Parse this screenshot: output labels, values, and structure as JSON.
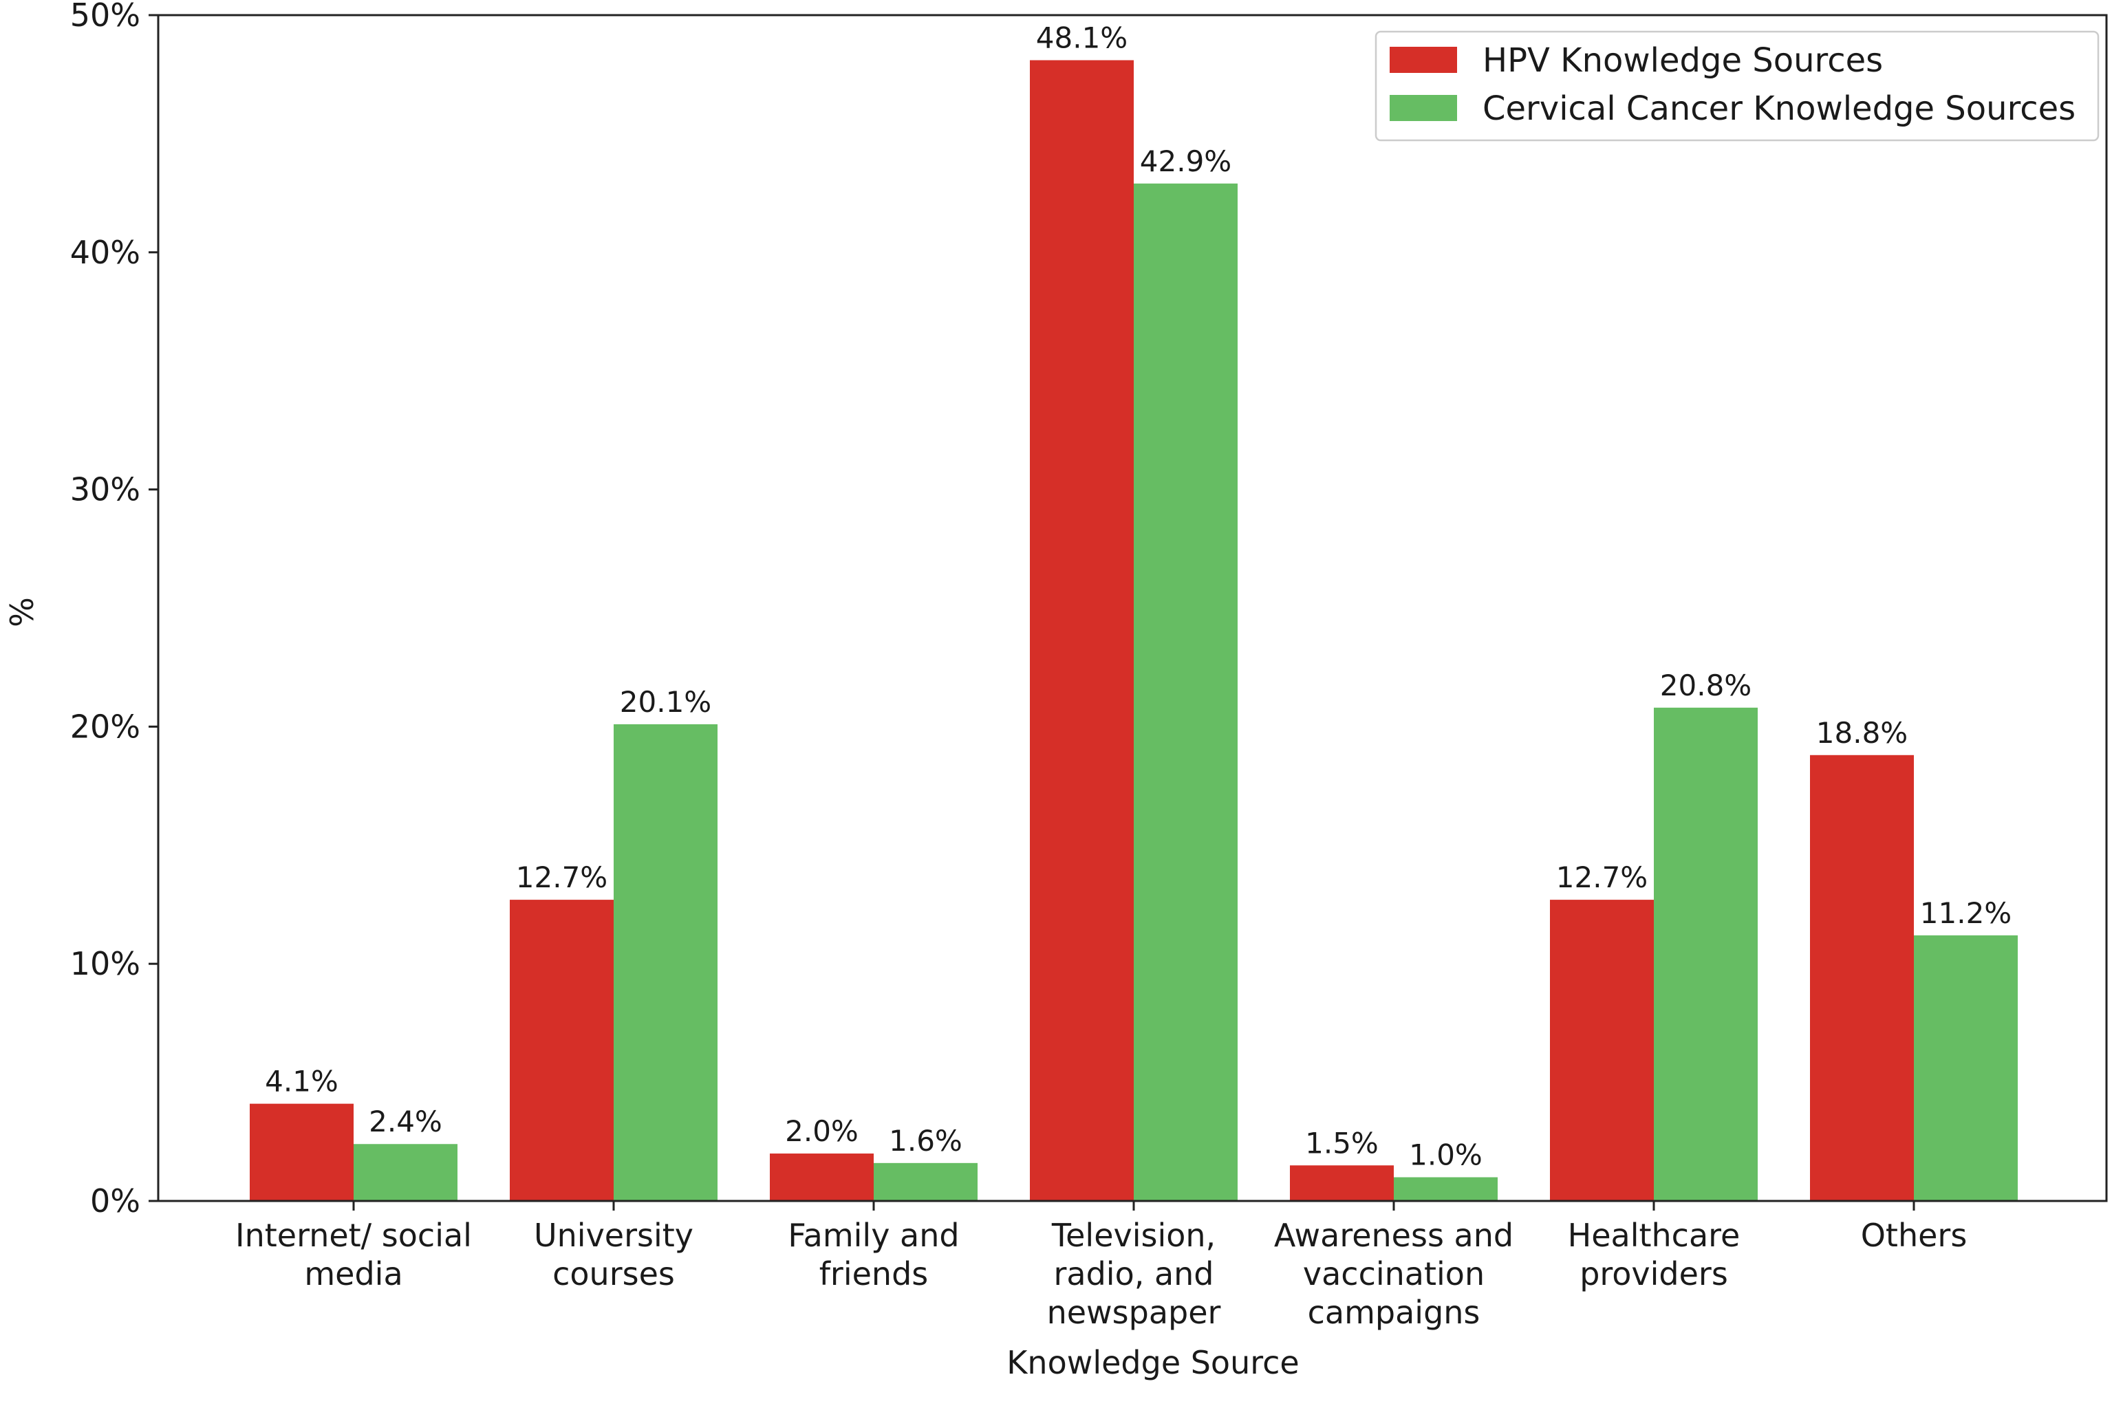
{
  "chart_data": {
    "type": "bar",
    "title": "",
    "xlabel": "Knowledge Source",
    "ylabel": "%",
    "ylim": [
      0,
      50
    ],
    "yticks": [
      0,
      10,
      20,
      30,
      40,
      50
    ],
    "ytick_labels": [
      "0%",
      "10%",
      "20%",
      "30%",
      "40%",
      "50%"
    ],
    "legend_position": "top-right",
    "grid": false,
    "categories": [
      [
        "Internet/ social",
        "media"
      ],
      [
        "University",
        "courses"
      ],
      [
        "Family and",
        "friends"
      ],
      [
        "Television,",
        "radio, and",
        "newspaper"
      ],
      [
        "Awareness and",
        "vaccination",
        "campaigns"
      ],
      [
        "Healthcare",
        "providers"
      ],
      [
        "Others"
      ]
    ],
    "series": [
      {
        "name": "HPV Knowledge Sources",
        "color": "#d62f28",
        "values": [
          4.1,
          12.7,
          2.0,
          48.1,
          1.5,
          12.7,
          18.8
        ],
        "labels": [
          "4.1%",
          "12.7%",
          "2.0%",
          "48.1%",
          "1.5%",
          "12.7%",
          "18.8%"
        ]
      },
      {
        "name": "Cervical Cancer Knowledge Sources",
        "color": "#66bd63",
        "values": [
          2.4,
          20.1,
          1.6,
          42.9,
          1.0,
          20.8,
          11.2
        ],
        "labels": [
          "2.4%",
          "20.1%",
          "1.6%",
          "42.9%",
          "1.0%",
          "20.8%",
          "11.2%"
        ]
      }
    ]
  }
}
